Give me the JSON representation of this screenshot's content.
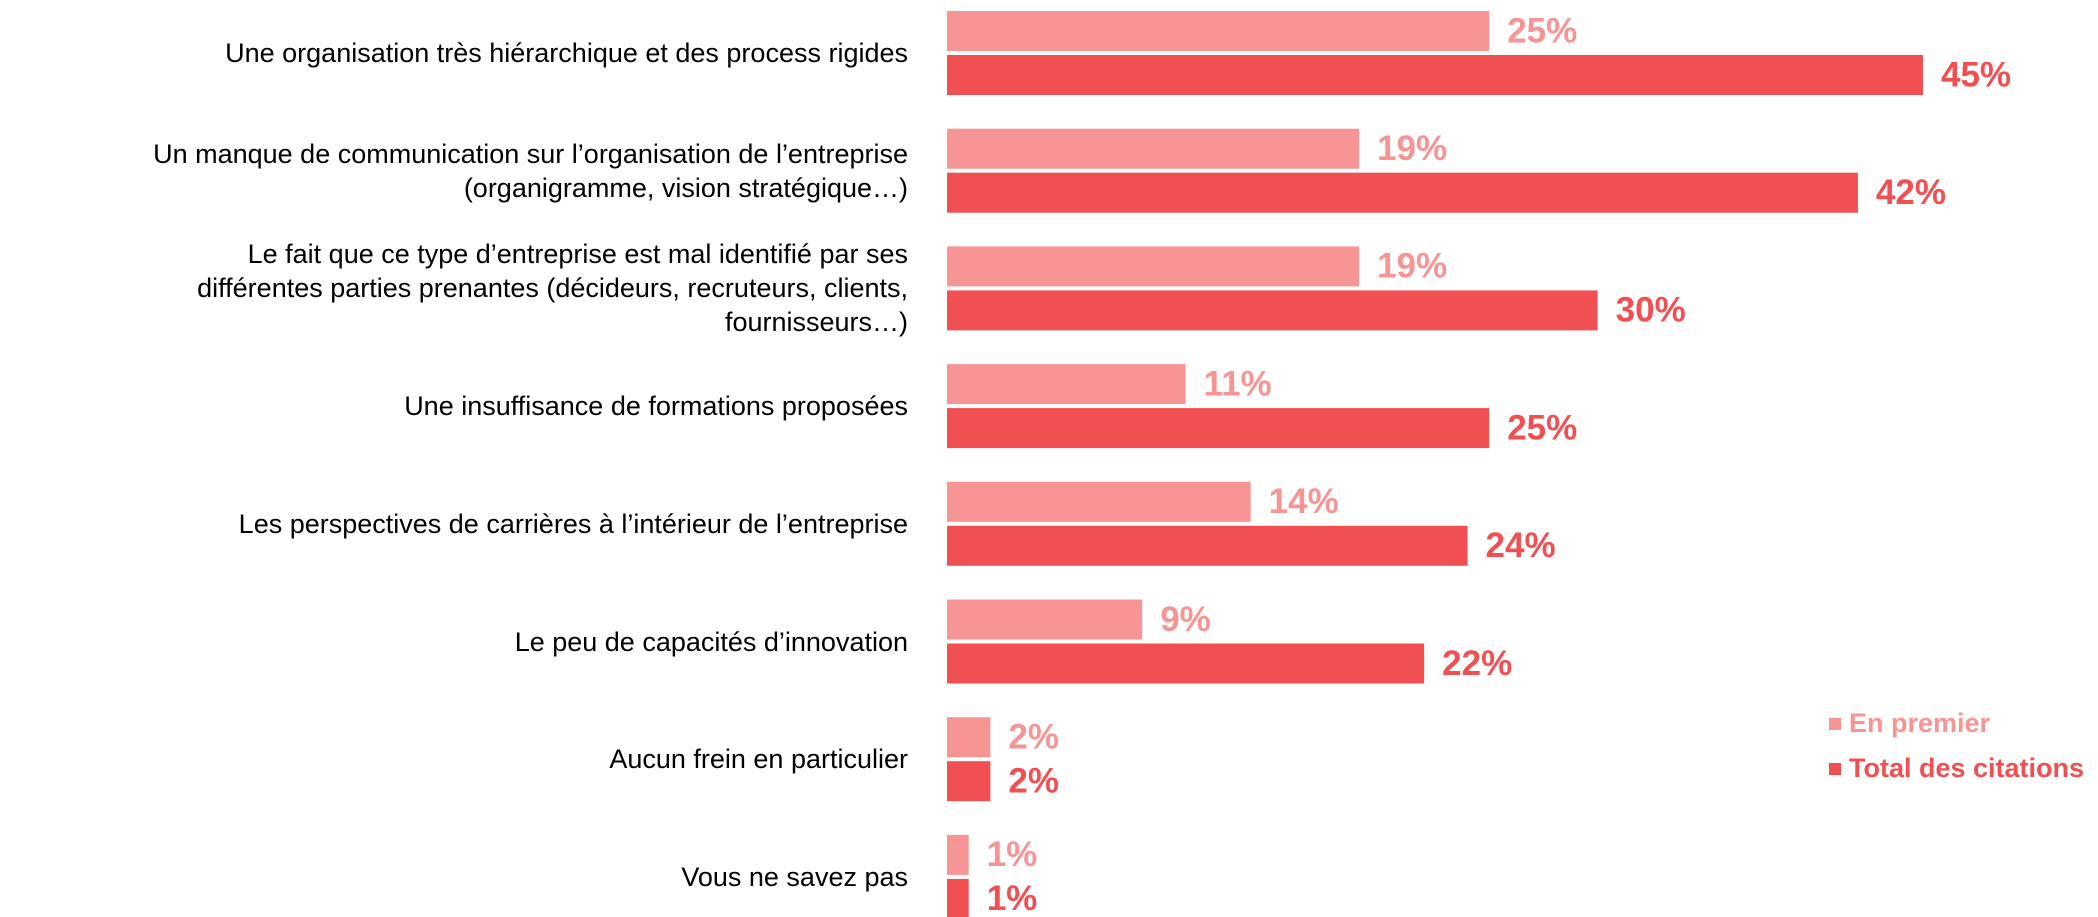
{
  "chart_data": {
    "type": "bar",
    "orientation": "horizontal",
    "categories": [
      "Une organisation très hiérarchique et des process rigides",
      "Un manque de communication sur l’organisation de l’entreprise\n(organigramme, vision stratégique…)",
      "Le fait que ce type d’entreprise est mal identifié par ses\ndifférentes parties prenantes (décideurs, recruteurs, clients,\nfournisseurs…)",
      "Une insuffisance de formations proposées",
      "Les perspectives de carrières à l’intérieur de l’entreprise",
      "Le peu de capacités d’innovation",
      "Aucun frein en particulier",
      "Vous ne savez pas"
    ],
    "series": [
      {
        "name": "En premier",
        "color": "#f79595",
        "values": [
          25,
          19,
          19,
          11,
          14,
          9,
          2,
          1
        ],
        "value_labels": [
          "25%",
          "19%",
          "19%",
          "11%",
          "14%",
          "9%",
          "2%",
          "1%"
        ]
      },
      {
        "name": "Total des citations",
        "color": "#f05052",
        "values": [
          45,
          42,
          30,
          25,
          24,
          22,
          2,
          1
        ],
        "value_labels": [
          "45%",
          "42%",
          "30%",
          "25%",
          "24%",
          "22%",
          "2%",
          "1%"
        ]
      }
    ],
    "legend": "bottom-right"
  }
}
